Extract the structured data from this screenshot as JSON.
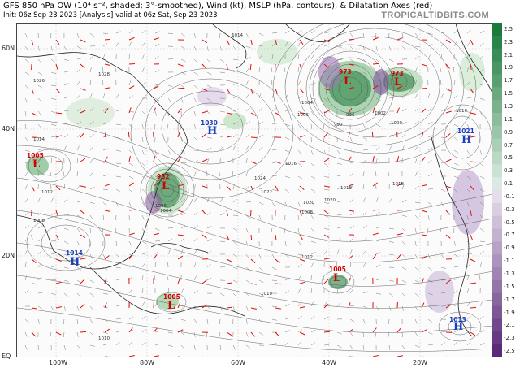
{
  "header": {
    "title": "GFS 850 hPa OW (10⁴ s⁻², shaded; 3°-smoothed), Wind (kt), MSLP (hPa, contours), & Dilatation Axes (red)",
    "subtitle": "Init: 06z Sep 23 2023   [Analysis]   valid at 06z Sat, Sep 23 2023",
    "brand": "TROPICALTIDBITS.COM"
  },
  "axes": {
    "lat_labels": [
      "60N",
      "40N",
      "20N",
      "EQ"
    ],
    "lon_labels": [
      "100W",
      "80W",
      "60W",
      "40W",
      "20W"
    ]
  },
  "colorbar": {
    "ticks": [
      "2.5",
      "2.3",
      "2.1",
      "1.9",
      "1.7",
      "1.5",
      "1.3",
      "1.1",
      "0.9",
      "0.7",
      "0.5",
      "0.3",
      "0.1",
      "-0.1",
      "-0.3",
      "-0.5",
      "-0.7",
      "-0.9",
      "-1.1",
      "-1.3",
      "-1.5",
      "-1.7",
      "-1.9",
      "-2.1",
      "-2.3",
      "-2.5"
    ],
    "positive_color": "#1a7a3a",
    "negative_color": "#5a2a7a"
  },
  "pressure_systems": [
    {
      "type": "L",
      "value": "1005",
      "color": "#d40000"
    },
    {
      "type": "L",
      "value": "982",
      "color": "#d40000"
    },
    {
      "type": "H",
      "value": "1030",
      "color": "#1a3fbf"
    },
    {
      "type": "L",
      "value": "973",
      "color": "#d40000"
    },
    {
      "type": "L",
      "value": "973",
      "color": "#d40000"
    },
    {
      "type": "H",
      "value": "1021",
      "color": "#1a3fbf"
    },
    {
      "type": "H",
      "value": "1014",
      "color": "#1a3fbf"
    },
    {
      "type": "L",
      "value": "1005",
      "color": "#d40000"
    },
    {
      "type": "L",
      "value": "1005",
      "color": "#d40000"
    },
    {
      "type": "H",
      "value": "1013",
      "color": "#1a3fbf"
    }
  ],
  "isobar_labels": [
    "1014",
    "1016",
    "1018",
    "1020",
    "1022",
    "1024",
    "1026",
    "1028",
    "1012",
    "1010",
    "1008",
    "1006",
    "1004",
    "1002",
    "996",
    "990",
    "1000",
    "1016",
    "1018",
    "1020",
    "1014",
    "1012",
    "1010",
    "1008",
    "1006",
    "1004"
  ]
}
